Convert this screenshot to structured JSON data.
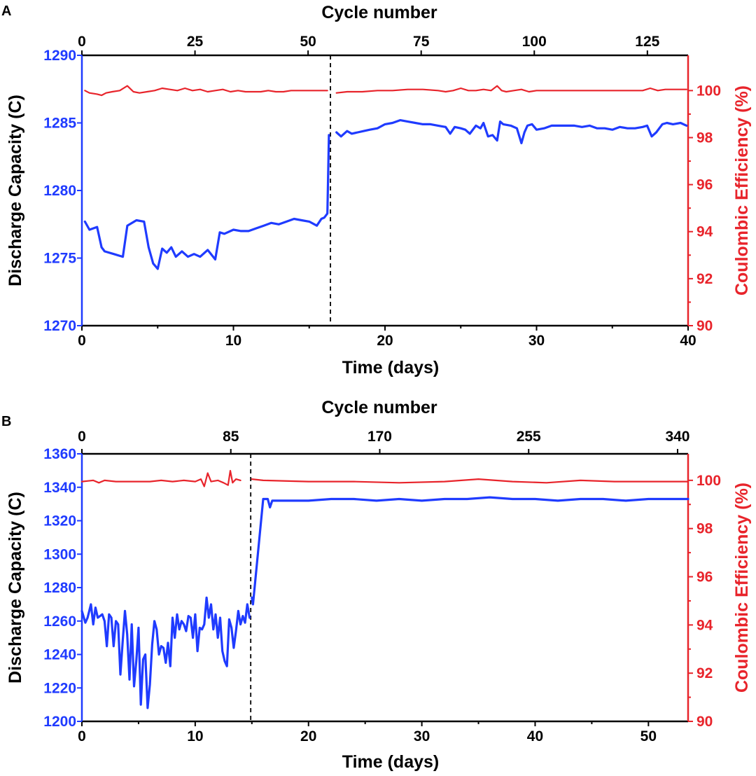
{
  "colors": {
    "capacity": "#1f3bff",
    "efficiency": "#e8242b",
    "black": "#000000"
  },
  "chart_data": [
    {
      "panel_label": "A",
      "type": "line",
      "xlabel": "Time (days)",
      "x2label": "Cycle number",
      "ylabel": "Discharge Capacity (C)",
      "y2label": "Coulombic Efficiency (%)",
      "xlim": [
        0,
        40
      ],
      "x2lim": [
        0,
        134
      ],
      "ylim": [
        1270,
        1290
      ],
      "y2lim": [
        90,
        101.5
      ],
      "xticks": [
        0,
        10,
        20,
        30,
        40
      ],
      "x2ticks": [
        0,
        25,
        50,
        75,
        100,
        125
      ],
      "yticks": [
        1270,
        1275,
        1280,
        1285,
        1290
      ],
      "y2ticks": [
        90,
        92,
        94,
        96,
        98,
        100
      ],
      "divider_x": 16.4,
      "series": [
        {
          "axis": "left",
          "values_x": [
            0.2,
            0.5,
            1.0,
            1.3,
            1.5,
            2.1,
            2.7,
            3.0,
            3.6,
            4.1,
            4.4,
            4.7,
            5.0,
            5.3,
            5.6,
            5.9,
            6.2,
            6.6,
            7.0,
            7.4,
            7.8,
            8.3,
            8.8,
            9.1,
            9.4,
            10.0,
            10.5,
            11.0,
            11.5,
            12.0,
            12.5,
            13.0,
            13.5,
            14.0,
            14.5,
            15.0,
            15.5,
            15.8,
            16.0,
            16.2,
            16.3,
            16.8,
            17.1,
            17.5,
            17.8,
            18.2,
            18.6,
            19.0,
            19.5,
            20.0,
            20.5,
            21.0,
            21.5,
            22.0,
            22.5,
            23.0,
            23.5,
            24.0,
            24.3,
            24.6,
            25.0,
            25.3,
            25.6,
            26.0,
            26.3,
            26.5,
            26.8,
            27.1,
            27.4,
            27.6,
            27.8,
            28.3,
            28.7,
            29.0,
            29.2,
            29.4,
            29.7,
            30.0,
            30.5,
            31.0,
            31.5,
            32.0,
            32.5,
            33.0,
            33.5,
            34.0,
            34.5,
            35.0,
            35.5,
            36.0,
            36.5,
            37.0,
            37.3,
            37.6,
            37.9,
            38.3,
            38.6,
            39.0,
            39.5,
            39.9
          ],
          "values_y": [
            1277.7,
            1277.1,
            1277.3,
            1275.8,
            1275.5,
            1275.3,
            1275.1,
            1277.4,
            1277.8,
            1277.7,
            1275.8,
            1274.6,
            1274.2,
            1275.7,
            1275.4,
            1275.8,
            1275.1,
            1275.5,
            1275.1,
            1275.3,
            1275.1,
            1275.6,
            1274.9,
            1276.9,
            1276.8,
            1277.1,
            1277.0,
            1277.0,
            1277.2,
            1277.4,
            1277.6,
            1277.5,
            1277.7,
            1277.9,
            1277.8,
            1277.7,
            1277.4,
            1277.9,
            1278.0,
            1278.3,
            1284.1,
            1284.3,
            1284.0,
            1284.4,
            1284.2,
            1284.3,
            1284.4,
            1284.5,
            1284.6,
            1284.9,
            1285.0,
            1285.2,
            1285.1,
            1285.0,
            1284.9,
            1284.9,
            1284.8,
            1284.7,
            1284.2,
            1284.7,
            1284.6,
            1284.5,
            1284.2,
            1284.8,
            1284.6,
            1285.0,
            1284.0,
            1284.1,
            1283.7,
            1285.1,
            1284.9,
            1284.8,
            1284.6,
            1283.5,
            1284.3,
            1284.8,
            1284.9,
            1284.5,
            1284.6,
            1284.8,
            1284.8,
            1284.8,
            1284.8,
            1284.7,
            1284.8,
            1284.6,
            1284.6,
            1284.5,
            1284.7,
            1284.6,
            1284.6,
            1284.7,
            1284.8,
            1284.0,
            1284.3,
            1284.9,
            1285.0,
            1284.9,
            1285.0,
            1284.8
          ]
        },
        {
          "axis": "right",
          "values_x": [
            0.2,
            0.5,
            1.0,
            1.3,
            1.6,
            2.0,
            2.5,
            3.0,
            3.4,
            3.8,
            4.3,
            4.8,
            5.3,
            5.8,
            6.3,
            6.8,
            7.3,
            7.8,
            8.3,
            8.8,
            9.3,
            9.8,
            10.3,
            10.8,
            11.3,
            11.8,
            12.3,
            12.8,
            13.3,
            13.8,
            14.3,
            14.8,
            15.3,
            15.8,
            16.2,
            16.8,
            17.5,
            18.5,
            19.5,
            20.5,
            21.5,
            22.5,
            23.5,
            24.0,
            24.5,
            25.0,
            25.5,
            26.0,
            26.5,
            27.0,
            27.4,
            27.7,
            28.0,
            28.5,
            29.0,
            29.5,
            30.0,
            31.0,
            32.0,
            33.0,
            34.0,
            35.0,
            36.0,
            37.0,
            37.5,
            38.0,
            38.5,
            39.0,
            39.9
          ],
          "values_y": [
            100.0,
            99.9,
            99.85,
            99.8,
            99.9,
            99.95,
            100.0,
            100.2,
            99.95,
            99.9,
            99.95,
            100.0,
            100.1,
            100.05,
            100.0,
            100.1,
            100.0,
            100.05,
            99.95,
            100.0,
            100.05,
            99.95,
            100.0,
            99.95,
            99.95,
            99.95,
            100.0,
            99.95,
            99.95,
            100.0,
            100.0,
            100.0,
            100.0,
            100.0,
            100.0,
            99.9,
            99.95,
            99.95,
            100.0,
            100.0,
            100.05,
            100.05,
            100.0,
            99.95,
            100.0,
            100.1,
            100.0,
            100.0,
            100.05,
            100.0,
            100.2,
            100.0,
            99.95,
            100.0,
            100.05,
            99.95,
            100.0,
            100.0,
            100.0,
            100.0,
            100.0,
            100.0,
            100.0,
            100.0,
            100.1,
            100.0,
            100.05,
            100.05,
            100.05
          ]
        }
      ]
    },
    {
      "panel_label": "B",
      "type": "line",
      "xlabel": "Time (days)",
      "x2label": "Cycle number",
      "ylabel": "Discharge Capacity (C)",
      "y2label": "Coulombic Efficiency (%)",
      "xlim": [
        0,
        53.5
      ],
      "x2lim": [
        0,
        346
      ],
      "ylim": [
        1200,
        1360
      ],
      "y2lim": [
        90,
        101.1
      ],
      "xticks": [
        0,
        10,
        20,
        30,
        40,
        50
      ],
      "x2ticks": [
        0,
        85,
        170,
        255,
        340
      ],
      "yticks": [
        1200,
        1220,
        1240,
        1260,
        1280,
        1300,
        1320,
        1340,
        1360
      ],
      "y2ticks": [
        90,
        92,
        94,
        96,
        98,
        100
      ],
      "divider_x": 14.9,
      "series": [
        {
          "axis": "left",
          "values_x": [
            0.0,
            0.3,
            0.5,
            0.8,
            1.0,
            1.2,
            1.4,
            1.6,
            1.8,
            2.0,
            2.2,
            2.4,
            2.6,
            2.8,
            3.0,
            3.2,
            3.4,
            3.6,
            3.8,
            4.0,
            4.2,
            4.4,
            4.6,
            4.8,
            5.0,
            5.2,
            5.4,
            5.6,
            5.8,
            6.0,
            6.2,
            6.4,
            6.6,
            6.8,
            7.0,
            7.2,
            7.4,
            7.6,
            7.8,
            8.0,
            8.2,
            8.4,
            8.6,
            8.8,
            9.0,
            9.2,
            9.4,
            9.6,
            9.8,
            10.0,
            10.2,
            10.4,
            10.6,
            10.8,
            11.0,
            11.2,
            11.4,
            11.6,
            11.8,
            12.0,
            12.2,
            12.4,
            12.6,
            12.8,
            13.0,
            13.2,
            13.4,
            13.6,
            13.8,
            14.0,
            14.2,
            14.4,
            14.6,
            14.8,
            15.0,
            15.1,
            16.0,
            16.4,
            16.6,
            16.8,
            18.0,
            20.0,
            22.0,
            24.0,
            26.0,
            28.0,
            30.0,
            32.0,
            34.0,
            36.0,
            38.0,
            40.0,
            42.0,
            44.0,
            46.0,
            48.0,
            50.0,
            52.0,
            53.5
          ],
          "values_y": [
            1266,
            1259,
            1262,
            1270,
            1258,
            1268,
            1262,
            1263,
            1264,
            1260,
            1245,
            1264,
            1262,
            1245,
            1260,
            1258,
            1228,
            1248,
            1266,
            1252,
            1225,
            1258,
            1221,
            1236,
            1256,
            1210,
            1237,
            1240,
            1208,
            1222,
            1246,
            1260,
            1255,
            1240,
            1245,
            1244,
            1235,
            1247,
            1233,
            1262,
            1250,
            1264,
            1255,
            1260,
            1258,
            1254,
            1263,
            1262,
            1250,
            1264,
            1242,
            1256,
            1255,
            1258,
            1274,
            1262,
            1270,
            1255,
            1264,
            1250,
            1262,
            1242,
            1236,
            1233,
            1261,
            1256,
            1244,
            1254,
            1266,
            1258,
            1263,
            1259,
            1270,
            1262,
            1274,
            1270,
            1333,
            1333,
            1328,
            1332,
            1332,
            1332,
            1333,
            1333,
            1332,
            1333,
            1332,
            1333,
            1333,
            1334,
            1333,
            1333,
            1332,
            1333,
            1333,
            1332,
            1333,
            1333,
            1333
          ]
        },
        {
          "axis": "right",
          "values_x": [
            0.0,
            1.0,
            1.5,
            2.0,
            3.0,
            4.0,
            5.0,
            6.0,
            7.0,
            8.0,
            9.0,
            10.0,
            10.5,
            10.8,
            11.1,
            11.4,
            12.0,
            12.5,
            12.9,
            13.1,
            13.3,
            13.6,
            14.0,
            15.0,
            16.0,
            20.0,
            24.0,
            28.0,
            32.0,
            35.0,
            38.0,
            41.0,
            44.0,
            47.0,
            50.0,
            53.5
          ],
          "values_y": [
            99.95,
            100.0,
            99.9,
            100.0,
            99.95,
            99.95,
            99.95,
            99.95,
            100.0,
            99.95,
            100.0,
            99.95,
            100.05,
            99.75,
            100.3,
            99.95,
            100.0,
            99.9,
            99.8,
            100.4,
            99.9,
            100.05,
            100.0,
            100.05,
            100.0,
            99.95,
            99.95,
            99.9,
            99.95,
            100.05,
            99.95,
            99.9,
            100.0,
            99.95,
            99.95,
            99.95
          ]
        }
      ]
    }
  ]
}
